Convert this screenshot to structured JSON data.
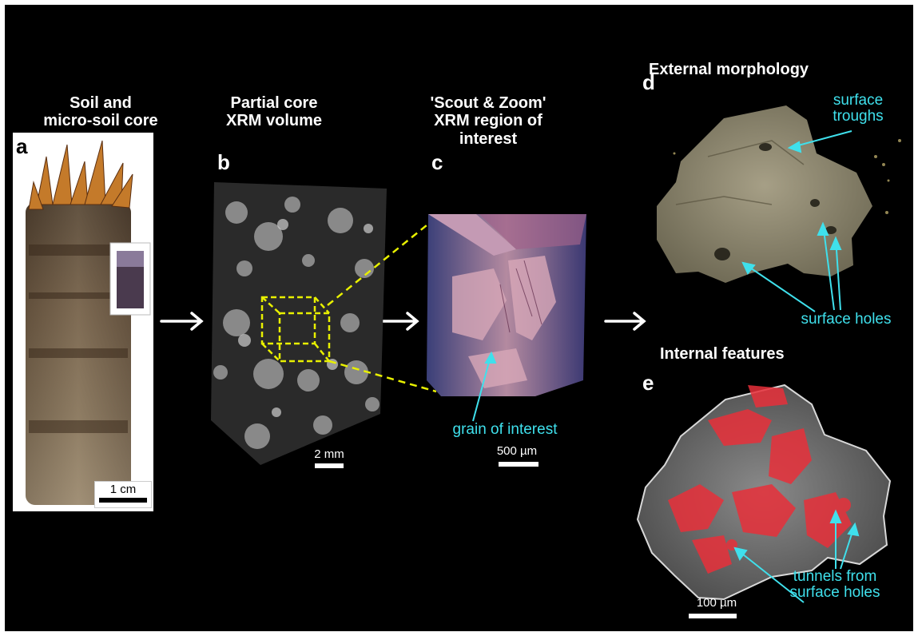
{
  "panels": {
    "a": {
      "letter": "a",
      "heading_line1": "Soil and",
      "heading_line2": "micro-soil core",
      "scale": "1 cm"
    },
    "b": {
      "letter": "b",
      "heading_line1": "Partial core",
      "heading_line2": "XRM volume",
      "scale": "2 mm"
    },
    "c": {
      "letter": "c",
      "heading_line1": "'Scout & Zoom'",
      "heading_line2": "XRM region of",
      "heading_line3": "interest",
      "scale": "500 µm",
      "annotation": "grain of interest"
    },
    "d": {
      "letter": "d",
      "heading": "External morphology",
      "annotation_troughs_1": "surface",
      "annotation_troughs_2": "troughs",
      "annotation_holes": "surface holes"
    },
    "e": {
      "letter": "e",
      "heading": "Internal features",
      "scale": "100 µm",
      "annotation_1": "tunnels from",
      "annotation_2": "surface holes"
    }
  },
  "colors": {
    "annotation": "#3fe0ec",
    "zoom_box": "#f0f000",
    "tunnels": "#e8303a"
  }
}
